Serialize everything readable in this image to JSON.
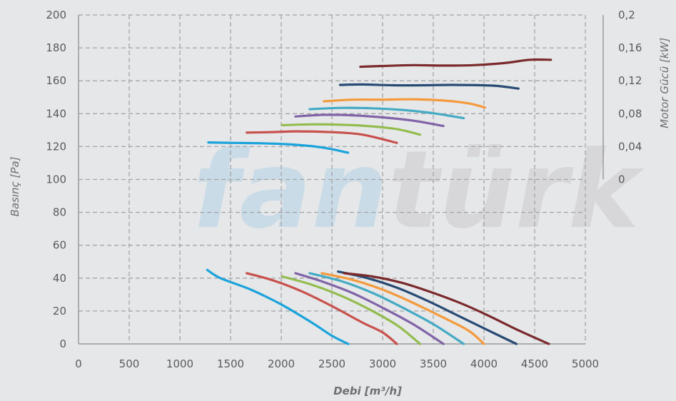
{
  "watermark": {
    "part1": "fan",
    "part2": "türk",
    "color1": "#c9dbe6",
    "color2": "#d7d7d9"
  },
  "chart_data": {
    "type": "line",
    "xlabel": "Debi [m³/h]",
    "ylabel": "Basınç [Pa]",
    "y2label": "Motor Gücü [kW]",
    "xlim": [
      0,
      5000
    ],
    "ylim": [
      0,
      200
    ],
    "y2lim": [
      0,
      0.2
    ],
    "y2_range_pa": [
      100,
      200
    ],
    "x_ticks": [
      "0",
      "500",
      "1000",
      "1500",
      "2000",
      "2500",
      "3000",
      "3500",
      "4000",
      "4500",
      "5000"
    ],
    "y_ticks": [
      "0",
      "20",
      "40",
      "60",
      "80",
      "100",
      "120",
      "140",
      "160",
      "180",
      "200"
    ],
    "y2_ticks": [
      "0",
      "0,04",
      "0,08",
      "0,12",
      "0,16",
      "0,2"
    ],
    "grid": true,
    "series": [
      {
        "color": "#1ba3db",
        "pressure": [
          [
            1270,
            45
          ],
          [
            1400,
            40
          ],
          [
            1700,
            33
          ],
          [
            2000,
            24
          ],
          [
            2300,
            13
          ],
          [
            2500,
            5
          ],
          [
            2660,
            0
          ]
        ],
        "power": [
          [
            1280,
            0.045
          ],
          [
            1500,
            0.0445
          ],
          [
            1800,
            0.044
          ],
          [
            2100,
            0.0425
          ],
          [
            2400,
            0.039
          ],
          [
            2660,
            0.0325
          ]
        ]
      },
      {
        "color": "#c8504d",
        "pressure": [
          [
            1660,
            43
          ],
          [
            1900,
            39
          ],
          [
            2200,
            32
          ],
          [
            2500,
            23
          ],
          [
            2800,
            13
          ],
          [
            3000,
            7
          ],
          [
            3140,
            0
          ]
        ],
        "power": [
          [
            1660,
            0.057
          ],
          [
            1900,
            0.0575
          ],
          [
            2150,
            0.0585
          ],
          [
            2500,
            0.0575
          ],
          [
            2800,
            0.0545
          ],
          [
            3140,
            0.0445
          ]
        ]
      },
      {
        "color": "#93bc4f",
        "pressure": [
          [
            2010,
            41
          ],
          [
            2300,
            36
          ],
          [
            2600,
            29
          ],
          [
            2900,
            20
          ],
          [
            3150,
            11
          ],
          [
            3370,
            0
          ]
        ],
        "power": [
          [
            2010,
            0.066
          ],
          [
            2300,
            0.067
          ],
          [
            2600,
            0.0665
          ],
          [
            2900,
            0.0645
          ],
          [
            3150,
            0.061
          ],
          [
            3370,
            0.0545
          ]
        ]
      },
      {
        "color": "#8163a8",
        "pressure": [
          [
            2140,
            43
          ],
          [
            2400,
            38
          ],
          [
            2700,
            31
          ],
          [
            3000,
            22
          ],
          [
            3300,
            12
          ],
          [
            3600,
            0
          ]
        ],
        "power": [
          [
            2140,
            0.0765
          ],
          [
            2400,
            0.0785
          ],
          [
            2700,
            0.078
          ],
          [
            3000,
            0.0755
          ],
          [
            3300,
            0.0715
          ],
          [
            3600,
            0.065
          ]
        ]
      },
      {
        "color": "#45aac4",
        "pressure": [
          [
            2280,
            43
          ],
          [
            2600,
            38
          ],
          [
            2900,
            31
          ],
          [
            3200,
            22
          ],
          [
            3500,
            12
          ],
          [
            3800,
            0
          ]
        ],
        "power": [
          [
            2280,
            0.0855
          ],
          [
            2600,
            0.087
          ],
          [
            2900,
            0.0865
          ],
          [
            3200,
            0.0845
          ],
          [
            3500,
            0.0805
          ],
          [
            3800,
            0.0745
          ]
        ]
      },
      {
        "color": "#f59a3c",
        "pressure": [
          [
            2400,
            43
          ],
          [
            2700,
            39
          ],
          [
            3000,
            33
          ],
          [
            3300,
            25
          ],
          [
            3600,
            16
          ],
          [
            3850,
            8
          ],
          [
            4000,
            0
          ]
        ],
        "power": [
          [
            2420,
            0.095
          ],
          [
            2700,
            0.097
          ],
          [
            3000,
            0.097
          ],
          [
            3300,
            0.0975
          ],
          [
            3600,
            0.096
          ],
          [
            3850,
            0.0925
          ],
          [
            4010,
            0.0875
          ]
        ]
      },
      {
        "color": "#284b75",
        "pressure": [
          [
            2560,
            44
          ],
          [
            2850,
            40
          ],
          [
            3150,
            34
          ],
          [
            3450,
            26
          ],
          [
            3750,
            17
          ],
          [
            4050,
            8
          ],
          [
            4320,
            0
          ]
        ],
        "power": [
          [
            2580,
            0.115
          ],
          [
            2800,
            0.1155
          ],
          [
            3100,
            0.1145
          ],
          [
            3400,
            0.1145
          ],
          [
            3700,
            0.115
          ],
          [
            4100,
            0.114
          ],
          [
            4340,
            0.1105
          ]
        ]
      },
      {
        "color": "#7a2a2c",
        "pressure": [
          [
            2620,
            43
          ],
          [
            2900,
            41
          ],
          [
            3200,
            37
          ],
          [
            3500,
            31
          ],
          [
            3800,
            24
          ],
          [
            4050,
            17
          ],
          [
            4350,
            8
          ],
          [
            4640,
            0
          ]
        ],
        "power": [
          [
            2780,
            0.137
          ],
          [
            3000,
            0.138
          ],
          [
            3300,
            0.139
          ],
          [
            3600,
            0.1385
          ],
          [
            3900,
            0.139
          ],
          [
            4200,
            0.1415
          ],
          [
            4450,
            0.1455
          ],
          [
            4660,
            0.1455
          ]
        ]
      }
    ]
  }
}
